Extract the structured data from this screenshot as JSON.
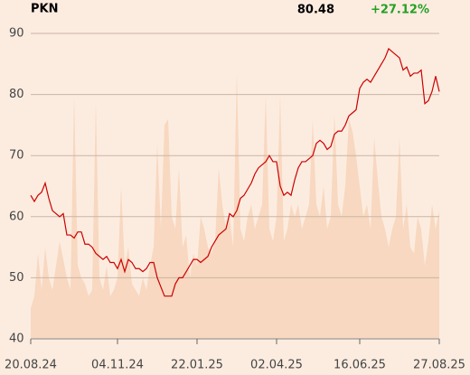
{
  "chart_data": {
    "type": "line",
    "title": "PKN",
    "last": "80.48",
    "change": "+27.12%",
    "change_color": "#22a022",
    "price": {
      "color": "#cc0000",
      "values": [
        63.5,
        62.5,
        63.5,
        64,
        65.5,
        63,
        61,
        60.5,
        60,
        60.5,
        57,
        57,
        56.5,
        57.5,
        57.5,
        55.5,
        55.5,
        55,
        54,
        53.5,
        53,
        53.5,
        52.5,
        52.5,
        51.5,
        53,
        51,
        53,
        52.5,
        51.5,
        51.5,
        51,
        51.5,
        52.5,
        52.5,
        50,
        48.5,
        47,
        47,
        47,
        49,
        50,
        50,
        51,
        52,
        53,
        53,
        52.5,
        53,
        53.5,
        55,
        56,
        57,
        57.5,
        58,
        60.5,
        60,
        61,
        63,
        63.5,
        64.5,
        65.5,
        67,
        68,
        68.5,
        69,
        70,
        69,
        69,
        65,
        63.5,
        64,
        63.5,
        66,
        68,
        69,
        69,
        69.5,
        70,
        72,
        72.5,
        72,
        71,
        71.5,
        73.5,
        74,
        74,
        75,
        76.5,
        77,
        77.5,
        81,
        82,
        82.5,
        82,
        83,
        84,
        85,
        86,
        87.5,
        87,
        86.5,
        86,
        84,
        84.5,
        83,
        83.5,
        83.5,
        84,
        78.5,
        79,
        80.5,
        83,
        80.48
      ]
    },
    "volume": {
      "color": "#f8d8c0",
      "values": [
        45,
        47,
        54,
        48,
        55,
        50,
        48,
        52,
        56,
        53,
        50,
        48,
        80,
        52,
        50,
        49,
        47,
        48,
        79,
        50,
        48,
        52,
        47,
        48,
        50,
        65,
        52,
        55,
        49,
        48,
        47,
        50,
        48,
        52,
        55,
        72,
        58,
        75,
        76,
        60,
        58,
        68,
        55,
        57,
        50,
        54,
        52,
        60,
        58,
        55,
        54,
        56,
        68,
        62,
        58,
        60,
        55,
        84,
        58,
        56,
        60,
        62,
        58,
        60,
        62,
        80,
        58,
        56,
        60,
        80,
        56,
        58,
        62,
        60,
        62,
        58,
        60,
        62,
        76,
        62,
        60,
        65,
        58,
        60,
        77,
        62,
        60,
        65,
        76,
        74,
        70,
        65,
        60,
        62,
        58,
        73,
        66,
        60,
        58,
        55,
        58,
        60,
        73,
        58,
        62,
        55,
        54,
        60,
        58,
        52,
        56,
        62,
        58,
        61
      ]
    },
    "xlim": [
      0,
      113
    ],
    "xticks": [
      {
        "value": 0,
        "label": "20.08.24"
      },
      {
        "value": 24,
        "label": "04.11.24"
      },
      {
        "value": 46,
        "label": "22.01.25"
      },
      {
        "value": 68,
        "label": "02.04.25"
      },
      {
        "value": 91,
        "label": "16.06.25"
      },
      {
        "value": 113,
        "label": "27.08.25"
      }
    ],
    "ylim": [
      40,
      90
    ],
    "yticks": [
      40,
      50,
      60,
      70,
      80,
      90
    ],
    "grid": true
  }
}
